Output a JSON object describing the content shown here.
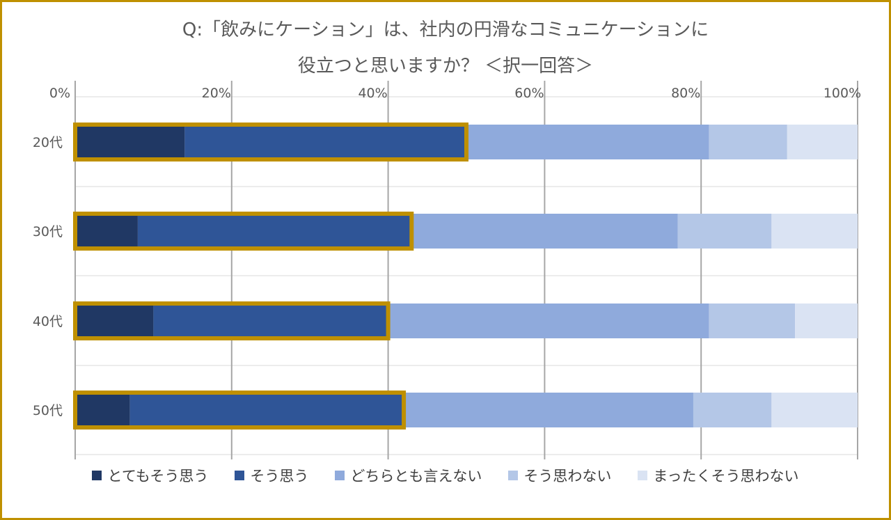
{
  "chart_data": {
    "type": "bar",
    "orientation": "horizontal",
    "stacked": true,
    "title_lines": [
      "Q:「飲みにケーション」は、社内の円滑なコミュニケーションに",
      "役立つと思いますか？ ＜択一回答＞"
    ],
    "categories": [
      "20代",
      "30代",
      "40代",
      "50代"
    ],
    "x_ticks": [
      "0%",
      "20%",
      "40%",
      "60%",
      "80%",
      "100%"
    ],
    "xlim": [
      0,
      100
    ],
    "x_axis_position": "top",
    "grid": true,
    "legend_position": "bottom",
    "series": [
      {
        "name": "とてもそう思う",
        "color": "#203864",
        "values": [
          14,
          8,
          10,
          7
        ]
      },
      {
        "name": "そう思う",
        "color": "#2F5597",
        "values": [
          36,
          35,
          30,
          35
        ]
      },
      {
        "name": "どちらとも言えない",
        "color": "#8FAADC",
        "values": [
          31,
          34,
          41,
          37
        ]
      },
      {
        "name": "そう思わない",
        "color": "#B4C7E7",
        "values": [
          10,
          12,
          11,
          10
        ]
      },
      {
        "name": "まったくそう思わない",
        "color": "#DAE3F3",
        "values": [
          9,
          11,
          8,
          11
        ]
      }
    ],
    "highlight": {
      "description_series": [
        "とてもそう思う",
        "そう思う"
      ],
      "color": "#BF9000"
    }
  }
}
